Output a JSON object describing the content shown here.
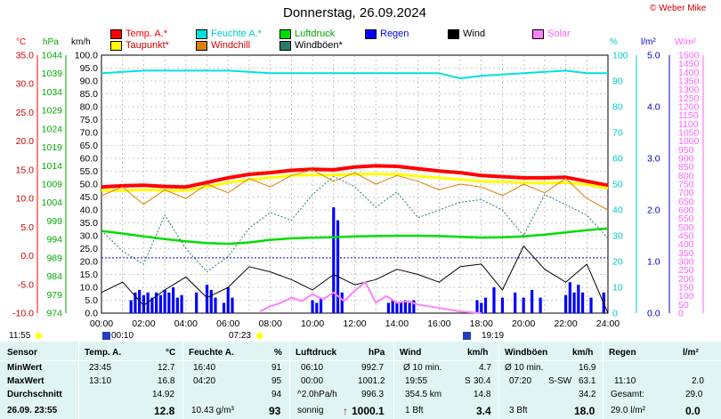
{
  "title": "Donnerstag, 26.09.2024",
  "credit": "© Weber Mike",
  "colors": {
    "temp": "#ff0000",
    "feuchte": "#00e0e0",
    "luftdruck": "#00dd00",
    "regen": "#0000ff",
    "wind": "#000000",
    "solar": "#ff80ff",
    "taupunkt": "#ffff00",
    "windchill": "#e08000",
    "windboeen": "#2a7a6a"
  },
  "legend": [
    {
      "label": "Temp. A.*",
      "color": "#ff0000",
      "text_color": "#ff0000"
    },
    {
      "label": "Feuchte A.*",
      "color": "#00e0e0",
      "text_color": "#00c8c8"
    },
    {
      "label": "Luftdruck",
      "color": "#00dd00",
      "text_color": "#00aa00"
    },
    {
      "label": "Regen",
      "color": "#0000ff",
      "text_color": "#0000ff"
    },
    {
      "label": "Wind",
      "color": "#000000",
      "text_color": "#000000"
    },
    {
      "label": "Solar",
      "color": "#ff80ff",
      "text_color": "#ff60ff"
    },
    {
      "label": "Taupunkt*",
      "color": "#ffff00",
      "text_color": "#cc0000"
    },
    {
      "label": "Windchill",
      "color": "#e08000",
      "text_color": "#cc0000"
    },
    {
      "label": "Windböen*",
      "color": "#2a7a6a",
      "text_color": "#000000"
    }
  ],
  "units": {
    "temp": "°C",
    "pressure": "hPa",
    "wind": "km/h",
    "humidity": "%",
    "rain": "l/m²",
    "solar": "W/m²"
  },
  "chart_data": {
    "type": "line",
    "title": "Donnerstag, 26.09.2024",
    "x_labels": [
      "00:00",
      "02:00",
      "04:00",
      "06:00",
      "08:00",
      "10:00",
      "12:00",
      "14:00",
      "16:00",
      "18:00",
      "20:00",
      "22:00",
      "24:00"
    ],
    "axes": {
      "temp": {
        "ticks": [
          "35.0",
          "30.0",
          "25.0",
          "20.0",
          "15.0",
          "10.0",
          "5.0",
          "0.0",
          "-5.0",
          "-10.0"
        ],
        "range": [
          -10,
          35
        ]
      },
      "pressure": {
        "ticks": [
          "1044",
          "1039",
          "1034",
          "1029",
          "1024",
          "1019",
          "1014",
          "1009",
          "1004",
          "999",
          "994",
          "989",
          "984",
          "979",
          "974"
        ],
        "range": [
          974,
          1044
        ]
      },
      "wind": {
        "ticks": [
          "100.0",
          "95.0",
          "90.0",
          "85.0",
          "80.0",
          "75.0",
          "70.0",
          "65.0",
          "60.0",
          "55.0",
          "50.0",
          "45.0",
          "40.0",
          "35.0",
          "30.0",
          "25.0",
          "20.0",
          "15.0",
          "10.0",
          "5.0",
          "0.0"
        ],
        "range": [
          0,
          100
        ]
      },
      "humidity": {
        "ticks": [
          "100",
          "90",
          "80",
          "70",
          "60",
          "50",
          "40",
          "30",
          "20",
          "10",
          "0"
        ],
        "range": [
          0,
          100
        ]
      },
      "rain": {
        "ticks": [
          "5.0",
          "4.0",
          "3.0",
          "2.0",
          "1.0",
          "0.0"
        ],
        "range": [
          0,
          5
        ]
      },
      "solar": {
        "ticks": [
          "1500",
          "1450",
          "1400",
          "1350",
          "1300",
          "1250",
          "1200",
          "1150",
          "1100",
          "1050",
          "1000",
          "950",
          "900",
          "850",
          "800",
          "750",
          "700",
          "650",
          "600",
          "550",
          "500",
          "450",
          "400",
          "350",
          "300",
          "250",
          "200",
          "150",
          "100",
          "50",
          "0"
        ],
        "range": [
          0,
          1500
        ]
      }
    },
    "series": [
      {
        "name": "Temp. A.*",
        "axis": "temp",
        "color": "#ff0000",
        "width": 4,
        "x": [
          0,
          1,
          2,
          3,
          4,
          5,
          6,
          7,
          8,
          9,
          10,
          11,
          12,
          13,
          14,
          15,
          16,
          17,
          18,
          19,
          20,
          21,
          22,
          23,
          24
        ],
        "y": [
          12.0,
          12.2,
          12.3,
          12.1,
          12.0,
          12.8,
          13.6,
          14.2,
          14.5,
          14.9,
          15.1,
          15.0,
          15.5,
          15.7,
          15.6,
          15.2,
          14.8,
          14.5,
          14.0,
          13.8,
          13.6,
          13.6,
          13.7,
          13.0,
          12.3
        ]
      },
      {
        "name": "Taupunkt*",
        "axis": "temp",
        "color": "#ffff00",
        "width": 3,
        "x": [
          0,
          1,
          2,
          3,
          4,
          5,
          6,
          7,
          8,
          9,
          10,
          11,
          12,
          13,
          14,
          15,
          16,
          17,
          18,
          19,
          20,
          21,
          22,
          23,
          24
        ],
        "y": [
          11.4,
          11.4,
          11.5,
          11.4,
          11.4,
          12.0,
          12.8,
          13.3,
          13.6,
          14.0,
          14.1,
          14.1,
          14.2,
          14.3,
          14.2,
          13.9,
          13.6,
          13.3,
          13.0,
          12.9,
          12.8,
          12.7,
          12.8,
          12.4,
          11.8
        ]
      },
      {
        "name": "Windchill",
        "axis": "temp",
        "color": "#e08000",
        "width": 1,
        "x": [
          0,
          1,
          2,
          3,
          4,
          5,
          6,
          7,
          8,
          9,
          10,
          11,
          12,
          13,
          14,
          15,
          16,
          17,
          18,
          19,
          20,
          21,
          22,
          23,
          24
        ],
        "y": [
          10.5,
          12.0,
          9.0,
          11.5,
          10.0,
          12.5,
          11.0,
          13.5,
          12.0,
          14.0,
          15.0,
          13.0,
          14.5,
          12.5,
          14.0,
          13.0,
          11.5,
          12.5,
          12.0,
          10.5,
          12.5,
          11.0,
          13.5,
          10.0,
          8.0
        ]
      },
      {
        "name": "Feuchte A.*",
        "axis": "humidity",
        "color": "#00e0e0",
        "width": 2,
        "x": [
          0,
          2,
          4,
          6,
          8,
          10,
          12,
          14,
          16,
          17,
          18,
          20,
          22,
          23,
          24
        ],
        "y": [
          93,
          94,
          94,
          94,
          93,
          93,
          93,
          93,
          93,
          91,
          92,
          93,
          94,
          93,
          93
        ]
      },
      {
        "name": "Luftdruck",
        "axis": "pressure",
        "color": "#00dd00",
        "width": 2.5,
        "x": [
          0,
          1,
          2,
          3,
          4,
          5,
          6,
          7,
          8,
          9,
          10,
          11,
          12,
          13,
          14,
          15,
          16,
          17,
          18,
          19,
          20,
          21,
          22,
          23,
          24
        ],
        "y": [
          996.3,
          995.6,
          994.8,
          994.1,
          993.5,
          993.0,
          992.8,
          993.2,
          993.9,
          994.3,
          994.5,
          994.6,
          994.8,
          994.9,
          995.0,
          995.0,
          994.9,
          994.7,
          994.5,
          994.6,
          994.8,
          995.3,
          995.9,
          996.5,
          997.0
        ]
      },
      {
        "name": "Windböen*",
        "axis": "wind",
        "color": "#2a7a6a",
        "width": 1,
        "dash": "2,2",
        "x": [
          0,
          1,
          2,
          3,
          4,
          5,
          6,
          7,
          8,
          9,
          10,
          11,
          12,
          13,
          14,
          15,
          16,
          17,
          18,
          19,
          20,
          21,
          22,
          23,
          24
        ],
        "y": [
          32,
          24,
          19,
          38,
          25,
          16,
          22,
          33,
          39,
          36,
          46,
          53,
          49,
          41,
          47,
          37,
          40,
          43,
          44,
          40,
          30,
          46,
          42,
          38,
          29
        ]
      },
      {
        "name": "Wind",
        "axis": "wind",
        "color": "#000000",
        "width": 1,
        "x": [
          0,
          1,
          2,
          3,
          4,
          5,
          6,
          7,
          8,
          9,
          10,
          11,
          12,
          13,
          14,
          15,
          16,
          17,
          18,
          19,
          20,
          21,
          22,
          23,
          24
        ],
        "y": [
          8,
          12,
          3,
          9,
          14,
          6,
          10,
          18,
          16,
          13,
          9,
          15,
          11,
          13,
          17,
          15,
          12,
          18,
          19,
          9,
          26,
          17,
          12,
          19,
          0
        ]
      },
      {
        "name": "Solar",
        "axis": "solar",
        "color": "#ff80ff",
        "width": 2,
        "x": [
          7.5,
          8,
          8.5,
          9,
          9.5,
          10,
          10.5,
          11,
          11.5,
          12,
          12.5,
          13,
          13.5,
          14,
          14.5,
          15,
          15.5,
          16,
          16.5,
          17,
          17.5,
          18
        ],
        "y": [
          10,
          40,
          60,
          90,
          70,
          110,
          80,
          120,
          70,
          130,
          180,
          60,
          100,
          60,
          70,
          50,
          40,
          30,
          20,
          10,
          5,
          0
        ]
      }
    ],
    "rain_bars": {
      "axis": "rain",
      "color": "#0000ff",
      "x": [
        1.4,
        1.6,
        1.8,
        2.0,
        2.2,
        2.4,
        2.6,
        2.8,
        3.0,
        3.2,
        3.4,
        3.6,
        3.8,
        4.5,
        5.0,
        5.2,
        5.4,
        5.8,
        6.0,
        6.2,
        10.0,
        10.2,
        10.4,
        11.0,
        11.2,
        11.4,
        13.6,
        13.8,
        14.0,
        14.2,
        14.4,
        14.6,
        14.8,
        17.8,
        18.0,
        18.2,
        18.6,
        19.0,
        19.6,
        20.0,
        20.4,
        20.8,
        22.0,
        22.2,
        22.4,
        22.6,
        22.8,
        23.2,
        23.8
      ],
      "y": [
        0.25,
        0.4,
        0.45,
        0.35,
        0.4,
        0.3,
        0.4,
        0.35,
        0.45,
        0.4,
        0.5,
        0.3,
        0.35,
        0.4,
        0.55,
        0.45,
        0.3,
        0.2,
        0.5,
        0.3,
        0.25,
        0.2,
        0.3,
        2.05,
        1.8,
        0.4,
        0.2,
        0.25,
        0.2,
        0.2,
        0.25,
        0.2,
        0.25,
        0.25,
        0.2,
        0.3,
        0.5,
        0.3,
        0.4,
        0.3,
        0.45,
        0.3,
        0.35,
        0.6,
        0.4,
        0.55,
        0.4,
        0.3,
        0.4
      ]
    },
    "grid": true,
    "dotted_reference": {
      "axis": "pressure",
      "value": 989
    }
  },
  "events": [
    {
      "time": "11:55",
      "marker": "sun-low"
    },
    {
      "time": "00:10",
      "marker": "moon"
    },
    {
      "time": "07:23",
      "marker": "sunrise"
    },
    {
      "time": "19:19",
      "marker": "sunset"
    }
  ],
  "table": {
    "headers": {
      "sensor": "Sensor",
      "temp": "Temp. A.",
      "temp_unit": "°C",
      "feuchte": "Feuchte A.",
      "feuchte_unit": "%",
      "luftdruck": "Luftdruck",
      "luftdruck_unit": "hPa",
      "wind": "Wind",
      "wind_unit": "km/h",
      "windboeen": "Windböen",
      "windboeen_unit": "km/h",
      "regen": "Regen",
      "regen_unit": "l/m²"
    },
    "row_labels": {
      "min": "MinWert",
      "max": "MaxWert",
      "avg": "Durchschnitt",
      "current": "26.09. 23:55"
    },
    "temp": {
      "min_time": "23:45",
      "min": "12.7",
      "max_time": "13:10",
      "max": "16.8",
      "avg": "14.92",
      "current": "12.8"
    },
    "feuchte": {
      "min_time": "16:40",
      "min": "91",
      "max_time": "04:20",
      "max": "95",
      "avg": "94",
      "abs": "10.43 g/m³",
      "current": "93"
    },
    "luftdruck": {
      "min_time": "06:10",
      "min": "992.7",
      "max_time": "00:00",
      "max": "1001.2",
      "trend_label": "^2.0hPa/h",
      "avg": "996.3",
      "state": "sonnig",
      "arrow": "↑",
      "current": "1000.1"
    },
    "wind": {
      "min_label": "Ø 10 min.",
      "min": "4.7",
      "max_time": "19:55",
      "max_dir": "S",
      "max": "30.4",
      "distance": "354.5 km",
      "avg": "14.8",
      "bft": "1 Bft",
      "current": "3.4"
    },
    "windboeen": {
      "min_label": "Ø 10 min.",
      "min": "16.9",
      "max_time": "07:20",
      "max_dir": "S-SW",
      "max": "63.1",
      "avg": "34.2",
      "bft": "3 Bft",
      "current": "18.0"
    },
    "regen": {
      "max_time": "11:10",
      "max": "2.0",
      "gesamt_label": "Gesamt:",
      "gesamt": "29.0",
      "current_rate": "29.0 l/m²",
      "current": "0.0"
    }
  }
}
